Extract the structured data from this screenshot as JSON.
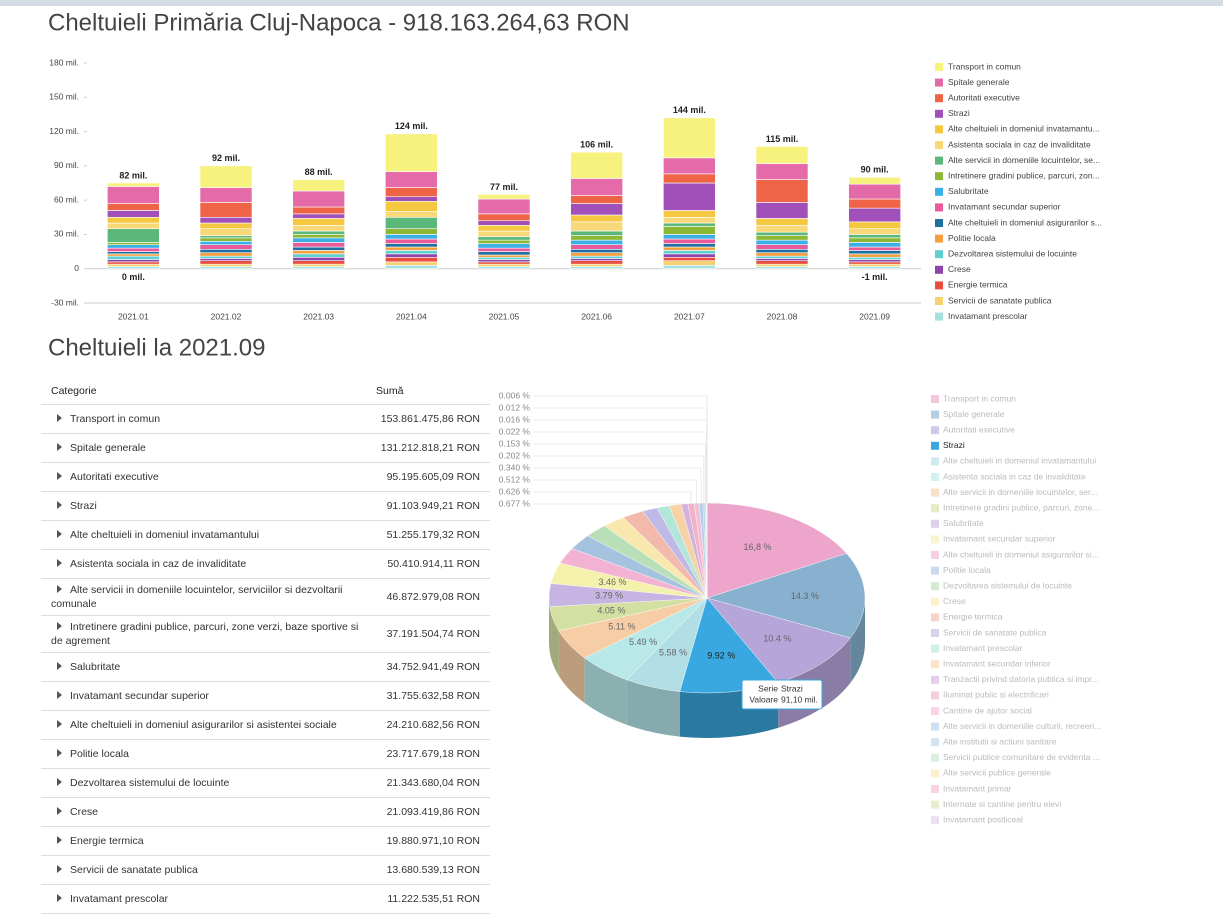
{
  "page": {
    "title": "Cheltuieli Primăria Cluj-Napoca - 918.163.264,63 RON",
    "section_title": "Cheltuieli la 2021.09"
  },
  "chart_data": [
    {
      "type": "bar",
      "stacked": true,
      "legend": "right",
      "grid": false,
      "categories": [
        "2021.01",
        "2021.02",
        "2021.03",
        "2021.04",
        "2021.05",
        "2021.06",
        "2021.07",
        "2021.08",
        "2021.09"
      ],
      "ylim": [
        -30,
        180
      ],
      "yticks": [
        {
          "value": -30,
          "label": "-30 mil."
        },
        0,
        {
          "value": 30,
          "label": "30 mil."
        },
        {
          "value": 60,
          "label": "60 mil."
        },
        {
          "value": 90,
          "label": "90 mil."
        },
        {
          "value": 120,
          "label": "120 mil."
        },
        {
          "value": 150,
          "label": "150 mil."
        },
        {
          "value": 180,
          "label": "180 mil."
        }
      ],
      "top_labels": [
        "82 mil.",
        "92 mil.",
        "88 mil.",
        "124 mil.",
        "77 mil.",
        "106 mil.",
        "144 mil.",
        "115 mil.",
        "90 mil."
      ],
      "bottom_labels": [
        "0 mil.",
        null,
        null,
        null,
        null,
        null,
        null,
        null,
        "-1 mil."
      ],
      "series": [
        {
          "name": "Transport in comun",
          "color": "#f7f17d",
          "values": [
            3,
            19,
            10,
            33,
            4,
            23,
            35,
            15,
            6
          ]
        },
        {
          "name": "Spitale generale",
          "color": "#e46aa9",
          "values": [
            15,
            13,
            14,
            14,
            13,
            15,
            14,
            14,
            13
          ]
        },
        {
          "name": "Autoritati executive",
          "color": "#ef6347",
          "values": [
            6,
            13,
            6,
            8,
            6,
            7,
            8,
            20,
            8
          ]
        },
        {
          "name": "Strazi",
          "color": "#a050b8",
          "values": [
            6,
            5,
            4,
            4,
            4,
            10,
            24,
            14,
            12
          ]
        },
        {
          "name": "Alte cheltuieli in domeniul invatamantu...",
          "color": "#f5c842",
          "values": [
            5,
            5,
            6,
            9,
            5,
            6,
            6,
            6,
            6
          ]
        },
        {
          "name": "Asistenta sociala in caz de invaliditate",
          "color": "#f9d87a",
          "values": [
            5,
            6,
            5,
            5,
            5,
            8,
            5,
            6,
            5
          ]
        },
        {
          "name": "Alte servicii in domeniile locuintelor, se...",
          "color": "#5cb87a",
          "values": [
            12,
            2,
            3,
            10,
            3,
            4,
            3,
            3,
            3
          ]
        },
        {
          "name": "Intretinere gradini publice, parcuri, zon...",
          "color": "#8cb836",
          "values": [
            2,
            3,
            3,
            5,
            3,
            4,
            7,
            4,
            4
          ]
        },
        {
          "name": "Salubritate",
          "color": "#3cb0e6",
          "values": [
            3,
            3,
            4,
            4,
            4,
            4,
            4,
            4,
            4
          ]
        },
        {
          "name": "Invatamant secundar superior",
          "color": "#e85a9a",
          "values": [
            3,
            4,
            4,
            4,
            3,
            4,
            4,
            4,
            3
          ]
        },
        {
          "name": "Alte cheltuieli in domeniul asigurarilor s...",
          "color": "#1f6fa0",
          "values": [
            2,
            3,
            3,
            3,
            3,
            3,
            3,
            3,
            3
          ]
        },
        {
          "name": "Politie locala",
          "color": "#f5a040",
          "values": [
            2,
            3,
            3,
            3,
            2,
            3,
            3,
            3,
            3
          ]
        },
        {
          "name": "Dezvoltarea sistemului de locuinte",
          "color": "#5fd0d0",
          "values": [
            3,
            2,
            3,
            3,
            2,
            2,
            3,
            2,
            2
          ]
        },
        {
          "name": "Crese",
          "color": "#8e44ad",
          "values": [
            2,
            2,
            3,
            3,
            2,
            2,
            3,
            2,
            2
          ]
        },
        {
          "name": "Energie termica",
          "color": "#e74c3c",
          "values": [
            2,
            3,
            3,
            4,
            2,
            3,
            3,
            3,
            2
          ]
        },
        {
          "name": "Servicii de sanatate publica",
          "color": "#f7d070",
          "values": [
            2,
            2,
            2,
            3,
            2,
            2,
            4,
            2,
            2
          ]
        },
        {
          "name": "Invatamant prescolar",
          "color": "#a8e0e0",
          "values": [
            2,
            2,
            2,
            3,
            2,
            2,
            3,
            2,
            2
          ]
        }
      ]
    },
    {
      "type": "pie",
      "legend": "right",
      "highlighted": "Strazi",
      "categories": [
        "Transport in comun",
        "Spitale generale",
        "Autoritati executive",
        "Strazi",
        "Alte cheltuieli in domeniul invatamantului",
        "Asistenta sociala in caz de invaliditate",
        "Alte servicii in domeniile locuintelor, ser...",
        "Intretinere gradini publice, parcuri, zone...",
        "Salubritate",
        "Invatamant secundar superior",
        "Alte cheltuieli in domeniul asigurarilor si...",
        "Politie locala",
        "Dezvoltarea sistemului de locuinte",
        "Crese",
        "Energie termica",
        "Servicii de sanatate publica",
        "Invatamant prescolar",
        "Invatamant secundar inferior",
        "Tranzactii privind datoria publica si impr...",
        "Iluminat public si electrificari",
        "Cantine de ajutor social",
        "Alte servicii in domeniile culturii, recreeri...",
        "Alte institutii si actiuni sanitare",
        "Servicii publice comunitare de evidenta ...",
        "Alte servicii publice generale",
        "Invatamant primar",
        "Internate si cantine pentru elevi",
        "Invatamant postliceal"
      ],
      "values": [
        16.76,
        14.29,
        10.37,
        9.92,
        5.58,
        5.49,
        5.11,
        4.05,
        3.79,
        3.46,
        2.64,
        2.58,
        2.32,
        2.3,
        2.17,
        1.49,
        1.22,
        1.2,
        0.677,
        0.626,
        0.512,
        0.34,
        0.202,
        0.153,
        0.022,
        0.016,
        0.012,
        0.006
      ],
      "value_labels": [
        "16,8 %",
        "14.3 %",
        "10.4 %",
        "9.92 %",
        "5.58 %",
        "5.49 %",
        "5.11 %",
        "4.05 %",
        "3.79 %",
        "3.46 %",
        null,
        null,
        null,
        null,
        null,
        null,
        null,
        null,
        "0.677 %",
        "0.626 %",
        "0.512 %",
        "0.340 %",
        "0.202 %",
        "0.153 %",
        "0.022 %",
        "0.016 %",
        "0.012 %",
        "0.006 %"
      ],
      "colors": [
        "#e98fc0",
        "#6a9ec4",
        "#a48fd0",
        "#3aa8e0",
        "#9fd8e0",
        "#a7e3e3",
        "#f4c18f",
        "#c9d98a",
        "#b9a3dc",
        "#f2ee99",
        "#f0a0c8",
        "#8fb4d8",
        "#a8d8a8",
        "#f7e39a",
        "#f0a898",
        "#b0a8e0",
        "#a0e0d0",
        "#f5c890",
        "#c8a0d8",
        "#f0a0b8",
        "#f0b0d0",
        "#9fc0e8",
        "#a8c8e0",
        "#b8e0c0",
        "#f7e0a0",
        "#f0a8c8",
        "#d0e0a0",
        "#d8c0e8"
      ],
      "tooltip": [
        [
          "Serie",
          "Strazi"
        ],
        [
          "Valoare",
          "91,10 mil."
        ]
      ]
    }
  ],
  "table": {
    "columns": [
      "Categorie",
      "Sumă"
    ],
    "rows": [
      [
        "Transport in comun",
        "153.861.475,86 RON"
      ],
      [
        "Spitale generale",
        "131.212.818,21 RON"
      ],
      [
        "Autoritati executive",
        "95.195.605,09 RON"
      ],
      [
        "Strazi",
        "91.103.949,21 RON"
      ],
      [
        "Alte cheltuieli in domeniul invatamantului",
        "51.255.179,32 RON"
      ],
      [
        "Asistenta sociala in caz de invaliditate",
        "50.410.914,11 RON"
      ],
      [
        "Alte servicii in domeniile locuintelor, serviciilor si dezvoltarii comunale",
        "46.872.979,08 RON"
      ],
      [
        "Intretinere gradini publice, parcuri, zone verzi, baze sportive si de agrement",
        "37.191.504,74 RON"
      ],
      [
        "Salubritate",
        "34.752.941,49 RON"
      ],
      [
        "Invatamant secundar superior",
        "31.755.632,58 RON"
      ],
      [
        "Alte cheltuieli in domeniul asigurarilor si asistentei sociale",
        "24.210.682,56 RON"
      ],
      [
        "Politie locala",
        "23.717.679,18 RON"
      ],
      [
        "Dezvoltarea sistemului de locuinte",
        "21.343.680,04 RON"
      ],
      [
        "Crese",
        "21.093.419,86 RON"
      ],
      [
        "Energie termica",
        "19.880.971,10 RON"
      ],
      [
        "Servicii de sanatate publica",
        "13.680.539,13 RON"
      ],
      [
        "Invatamant prescolar",
        "11.222.535,51 RON"
      ]
    ]
  }
}
